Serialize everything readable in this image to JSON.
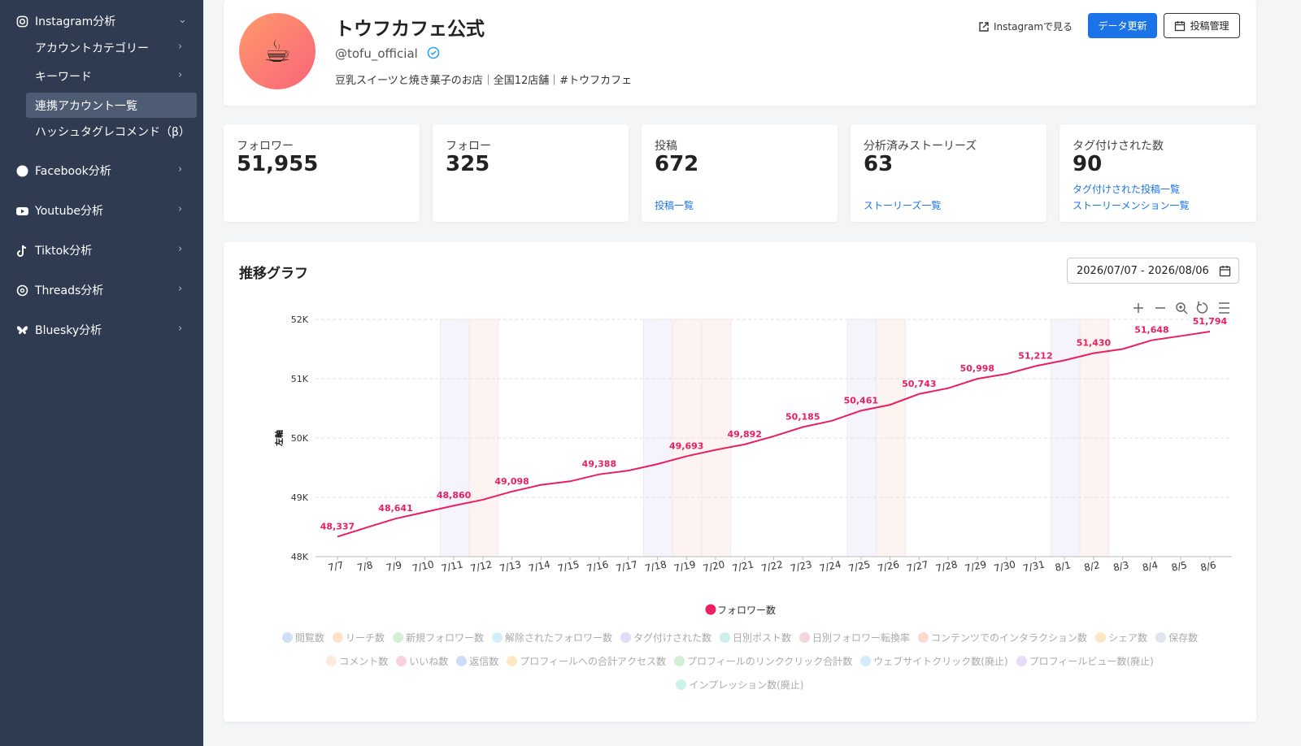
{
  "sidebar": {
    "sections": [
      {
        "label": "Instagram分析",
        "items": [
          "アカウントカテゴリー",
          "キーワード",
          "連携アカウント一覧",
          "ハッシュタグレコメンド（β）"
        ]
      },
      {
        "label": "Facebook分析"
      },
      {
        "label": "Youtube分析"
      },
      {
        "label": "Tiktok分析"
      },
      {
        "label": "Threads分析"
      },
      {
        "label": "Bluesky分析"
      }
    ]
  },
  "profile": {
    "avatar": "☕",
    "name": "トウフカフェ公式",
    "handle": "@tofu_official",
    "bio": "豆乳スイーツと焼き菓子のお店｜全国12店舗｜#トウフカフェ",
    "actions": [
      "Instagramで見る",
      "データ更新",
      "投稿管理"
    ]
  },
  "stats": [
    {
      "label": "フォロワー",
      "value": "51,955"
    },
    {
      "label": "フォロー",
      "value": "325"
    },
    {
      "label": "投稿",
      "value": "672",
      "links": [
        "投稿一覧"
      ]
    },
    {
      "label": "分析済みストーリーズ",
      "value": "63",
      "links": [
        "ストーリーズ一覧"
      ]
    },
    {
      "label": "タグ付けされた数",
      "value": "90",
      "links": [
        "タグ付けされた投稿一覧",
        "ストーリーメンション一覧"
      ]
    }
  ],
  "graph": {
    "title": "推移グラフ",
    "date_range": "2026/07/07 - 2026/08/06"
  },
  "chart_data": {
    "type": "line",
    "y_label": "左軸",
    "categories": [
      "7/7",
      "7/8",
      "7/9",
      "7/10",
      "7/11",
      "7/12",
      "7/13",
      "7/14",
      "7/15",
      "7/16",
      "7/17",
      "7/18",
      "7/19",
      "7/20",
      "7/21",
      "7/22",
      "7/23",
      "7/24",
      "7/25",
      "7/26",
      "7/27",
      "7/28",
      "7/29",
      "7/30",
      "7/31",
      "8/1",
      "8/2",
      "8/3",
      "8/4",
      "8/5",
      "8/6"
    ],
    "series": [
      {
        "name": "フォロワー数",
        "color": "#e91e63",
        "values": [
          48337,
          48490,
          48641,
          48750,
          48860,
          48960,
          49098,
          49210,
          49270,
          49388,
          49450,
          49560,
          49693,
          49800,
          49892,
          50030,
          50185,
          50290,
          50461,
          50560,
          50743,
          50840,
          50998,
          51080,
          51212,
          51310,
          51430,
          51500,
          51648,
          51720,
          51794
        ],
        "value_labels": [
          "48,337",
          null,
          "48,641",
          null,
          "48,860",
          null,
          "49,098",
          null,
          null,
          "49,388",
          null,
          null,
          "49,693",
          null,
          "49,892",
          null,
          "50,185",
          null,
          "50,461",
          null,
          "50,743",
          null,
          "50,998",
          null,
          "51,212",
          null,
          "51,430",
          null,
          "51,648",
          null,
          "51,794"
        ]
      }
    ],
    "ylim": [
      48000,
      52000
    ],
    "yticks": [
      {
        "value": 48000,
        "label": "48K"
      },
      {
        "value": 49000,
        "label": "49K"
      },
      {
        "value": 50000,
        "label": "50K"
      },
      {
        "value": 51000,
        "label": "51K"
      },
      {
        "value": 52000,
        "label": "52K"
      }
    ],
    "grid": true,
    "legend_inactive": [
      {
        "name": "閲覧数",
        "color": "#cfe0f7"
      },
      {
        "name": "リーチ数",
        "color": "#fde3c8"
      },
      {
        "name": "新規フォロワー数",
        "color": "#d4efd8"
      },
      {
        "name": "解除されたフォロワー数",
        "color": "#d3eefa"
      },
      {
        "name": "タグ付けされた数",
        "color": "#e3dcf5"
      },
      {
        "name": "日別ポスト数",
        "color": "#cdf1ea"
      },
      {
        "name": "日別フォロワー転換率",
        "color": "#f4d6dd"
      },
      {
        "name": "コンテンツでのインタラクション数",
        "color": "#fbd9cf"
      },
      {
        "name": "シェア数",
        "color": "#fde6c4"
      },
      {
        "name": "保存数",
        "color": "#e2e4ef"
      },
      {
        "name": "コメント数",
        "color": "#fde9de"
      },
      {
        "name": "いいね数",
        "color": "#f9d1dc"
      },
      {
        "name": "返信数",
        "color": "#cfdcf7"
      },
      {
        "name": "プロフィールへの合計アクセス数",
        "color": "#fde8c6"
      },
      {
        "name": "プロフィールのリンククリック合計数",
        "color": "#d2efd6"
      },
      {
        "name": "ウェブサイトクリック数(廃止)",
        "color": "#d2ecfa"
      },
      {
        "name": "プロフィールビュー数(廃止)",
        "color": "#e6dcf7"
      },
      {
        "name": "インプレッション数(廃止)",
        "color": "#cdf2ec"
      }
    ]
  }
}
